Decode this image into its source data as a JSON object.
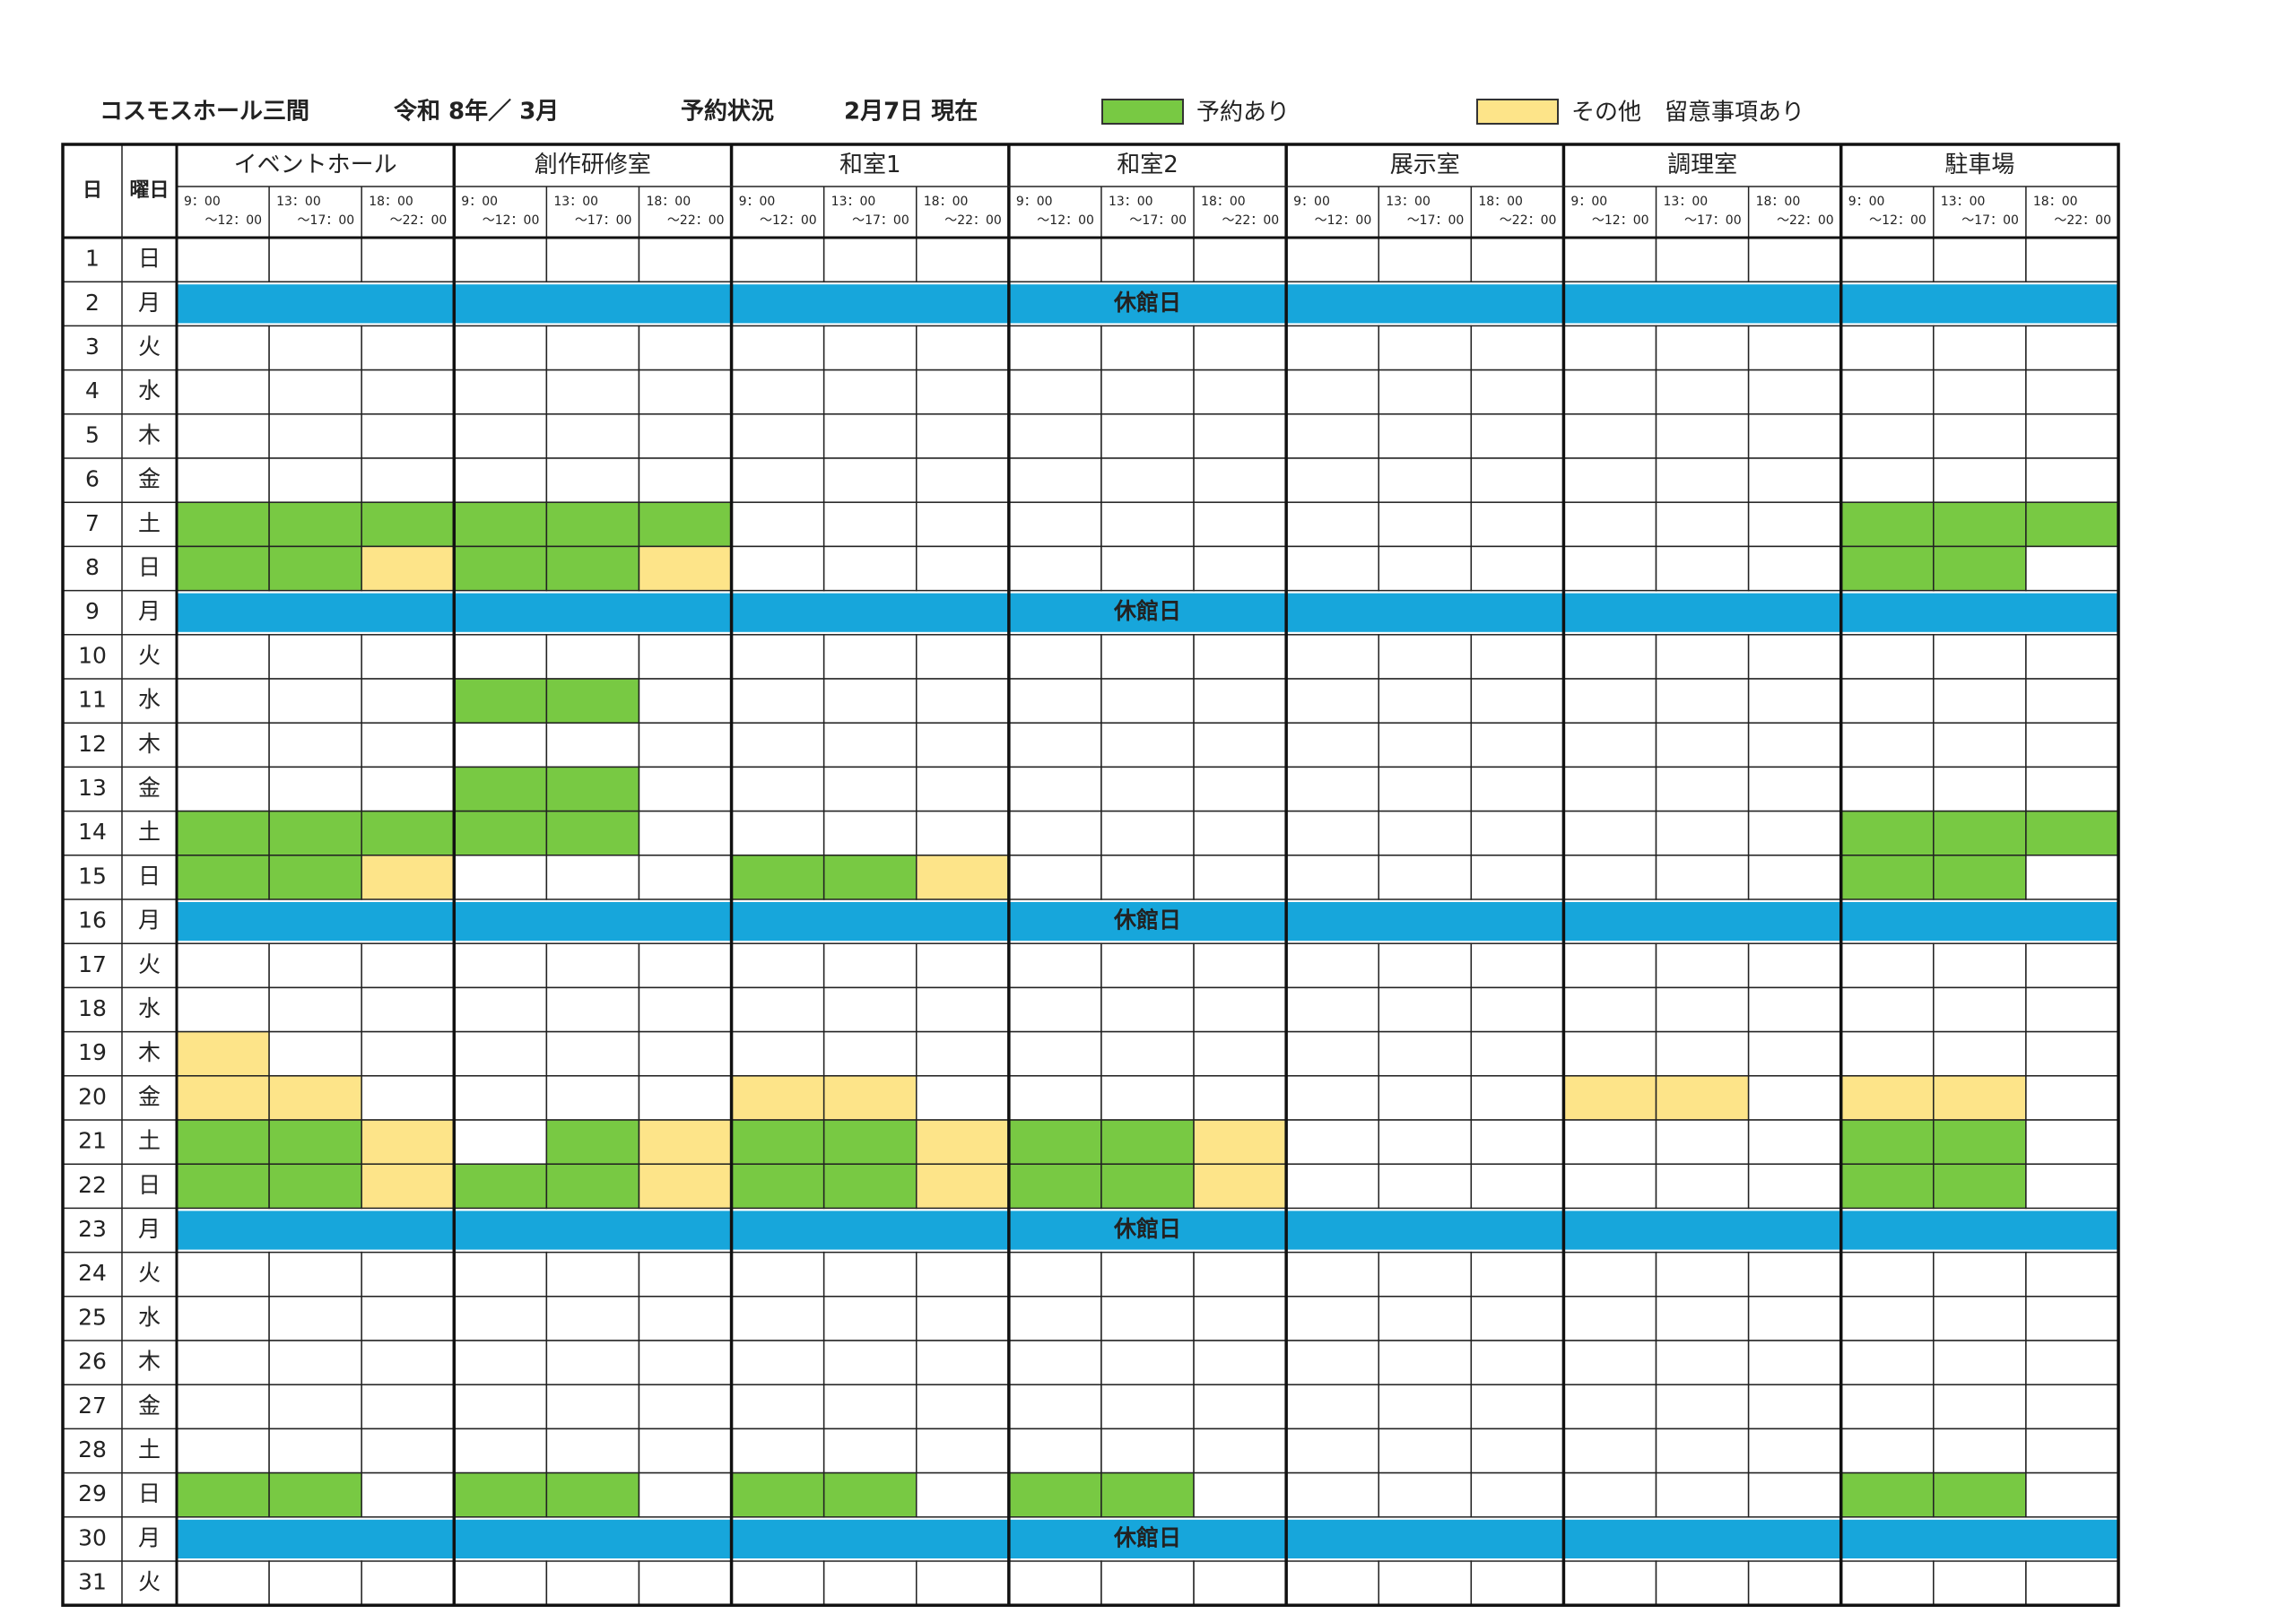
{
  "header": {
    "title": "コスモスホール三間",
    "period": "令和 8年／ 3月",
    "label": "予約状況",
    "as_of": "2月7日 現在"
  },
  "legend": [
    {
      "label": "予約あり",
      "color": "#78c943"
    },
    {
      "label": "その他　留意事項あり",
      "color": "#fde489"
    }
  ],
  "table": {
    "headers": [
      "日",
      "曜日"
    ],
    "rooms": [
      "イベントホール",
      "創作研修室",
      "和室1",
      "和室2",
      "展示室",
      "調理室",
      "駐車場"
    ],
    "slots": [
      [
        "9：00",
        "～12：00"
      ],
      [
        "13：00",
        "～17：00"
      ],
      [
        "18：00",
        "～22：00"
      ]
    ],
    "closed_label": "休館日",
    "closed_color": "#17a6db",
    "days": [
      {
        "day": 1,
        "weekday": "日",
        "color": "#d9542c",
        "cells": [
          null,
          null,
          null,
          null,
          null,
          null,
          null,
          null,
          null,
          null,
          null,
          null,
          null,
          null,
          null,
          null,
          null,
          null,
          null,
          null,
          null
        ]
      },
      {
        "day": 2,
        "weekday": "月",
        "closed": true
      },
      {
        "day": 3,
        "weekday": "火",
        "cells": [
          null,
          null,
          null,
          null,
          null,
          null,
          null,
          null,
          null,
          null,
          null,
          null,
          null,
          null,
          null,
          null,
          null,
          null,
          null,
          null,
          null
        ]
      },
      {
        "day": 4,
        "weekday": "水",
        "cells": [
          null,
          null,
          null,
          null,
          null,
          null,
          null,
          null,
          null,
          null,
          null,
          null,
          null,
          null,
          null,
          null,
          null,
          null,
          null,
          null,
          null
        ]
      },
      {
        "day": 5,
        "weekday": "木",
        "cells": [
          null,
          null,
          null,
          null,
          null,
          null,
          null,
          null,
          null,
          null,
          null,
          null,
          null,
          null,
          null,
          null,
          null,
          null,
          null,
          null,
          null
        ]
      },
      {
        "day": 6,
        "weekday": "金",
        "cells": [
          null,
          null,
          null,
          null,
          null,
          null,
          null,
          null,
          null,
          null,
          null,
          null,
          null,
          null,
          null,
          null,
          null,
          null,
          null,
          null,
          null
        ]
      },
      {
        "day": 7,
        "weekday": "土",
        "color": "#3aa0c8",
        "cells": [
          0,
          0,
          0,
          0,
          0,
          0,
          null,
          null,
          null,
          null,
          null,
          null,
          null,
          null,
          null,
          null,
          null,
          null,
          0,
          0,
          0
        ]
      },
      {
        "day": 8,
        "weekday": "日",
        "color": "#d9542c",
        "cells": [
          0,
          0,
          1,
          0,
          0,
          1,
          null,
          null,
          null,
          null,
          null,
          null,
          null,
          null,
          null,
          null,
          null,
          null,
          0,
          0,
          null
        ]
      },
      {
        "day": 9,
        "weekday": "月",
        "closed": true
      },
      {
        "day": 10,
        "weekday": "火",
        "cells": [
          null,
          null,
          null,
          null,
          null,
          null,
          null,
          null,
          null,
          null,
          null,
          null,
          null,
          null,
          null,
          null,
          null,
          null,
          null,
          null,
          null
        ]
      },
      {
        "day": 11,
        "weekday": "水",
        "cells": [
          null,
          null,
          null,
          0,
          0,
          null,
          null,
          null,
          null,
          null,
          null,
          null,
          null,
          null,
          null,
          null,
          null,
          null,
          null,
          null,
          null
        ]
      },
      {
        "day": 12,
        "weekday": "木",
        "cells": [
          null,
          null,
          null,
          null,
          null,
          null,
          null,
          null,
          null,
          null,
          null,
          null,
          null,
          null,
          null,
          null,
          null,
          null,
          null,
          null,
          null
        ]
      },
      {
        "day": 13,
        "weekday": "金",
        "cells": [
          null,
          null,
          null,
          0,
          0,
          null,
          null,
          null,
          null,
          null,
          null,
          null,
          null,
          null,
          null,
          null,
          null,
          null,
          null,
          null,
          null
        ]
      },
      {
        "day": 14,
        "weekday": "土",
        "color": "#3aa0c8",
        "cells": [
          0,
          0,
          0,
          0,
          0,
          null,
          null,
          null,
          null,
          null,
          null,
          null,
          null,
          null,
          null,
          null,
          null,
          null,
          0,
          0,
          0
        ]
      },
      {
        "day": 15,
        "weekday": "日",
        "color": "#d9542c",
        "cells": [
          0,
          0,
          1,
          null,
          null,
          null,
          0,
          0,
          1,
          null,
          null,
          null,
          null,
          null,
          null,
          null,
          null,
          null,
          0,
          0,
          null
        ]
      },
      {
        "day": 16,
        "weekday": "月",
        "closed": true
      },
      {
        "day": 17,
        "weekday": "火",
        "cells": [
          null,
          null,
          null,
          null,
          null,
          null,
          null,
          null,
          null,
          null,
          null,
          null,
          null,
          null,
          null,
          null,
          null,
          null,
          null,
          null,
          null
        ]
      },
      {
        "day": 18,
        "weekday": "水",
        "cells": [
          null,
          null,
          null,
          null,
          null,
          null,
          null,
          null,
          null,
          null,
          null,
          null,
          null,
          null,
          null,
          null,
          null,
          null,
          null,
          null,
          null
        ]
      },
      {
        "day": 19,
        "weekday": "木",
        "cells": [
          1,
          null,
          null,
          null,
          null,
          null,
          null,
          null,
          null,
          null,
          null,
          null,
          null,
          null,
          null,
          null,
          null,
          null,
          null,
          null,
          null
        ]
      },
      {
        "day": 20,
        "weekday": "金",
        "color": "#d9542c",
        "cells": [
          1,
          1,
          null,
          null,
          null,
          null,
          1,
          1,
          null,
          null,
          null,
          null,
          null,
          null,
          null,
          1,
          1,
          null,
          1,
          1,
          null
        ]
      },
      {
        "day": 21,
        "weekday": "土",
        "color": "#3aa0c8",
        "cells": [
          0,
          0,
          1,
          null,
          0,
          1,
          0,
          0,
          1,
          0,
          0,
          1,
          null,
          null,
          null,
          null,
          null,
          null,
          0,
          0,
          null
        ]
      },
      {
        "day": 22,
        "weekday": "日",
        "color": "#d9542c",
        "cells": [
          0,
          0,
          1,
          0,
          0,
          1,
          0,
          0,
          1,
          0,
          0,
          1,
          null,
          null,
          null,
          null,
          null,
          null,
          0,
          0,
          null
        ]
      },
      {
        "day": 23,
        "weekday": "月",
        "closed": true
      },
      {
        "day": 24,
        "weekday": "火",
        "cells": [
          null,
          null,
          null,
          null,
          null,
          null,
          null,
          null,
          null,
          null,
          null,
          null,
          null,
          null,
          null,
          null,
          null,
          null,
          null,
          null,
          null
        ]
      },
      {
        "day": 25,
        "weekday": "水",
        "cells": [
          null,
          null,
          null,
          null,
          null,
          null,
          null,
          null,
          null,
          null,
          null,
          null,
          null,
          null,
          null,
          null,
          null,
          null,
          null,
          null,
          null
        ]
      },
      {
        "day": 26,
        "weekday": "木",
        "cells": [
          null,
          null,
          null,
          null,
          null,
          null,
          null,
          null,
          null,
          null,
          null,
          null,
          null,
          null,
          null,
          null,
          null,
          null,
          null,
          null,
          null
        ]
      },
      {
        "day": 27,
        "weekday": "金",
        "cells": [
          null,
          null,
          null,
          null,
          null,
          null,
          null,
          null,
          null,
          null,
          null,
          null,
          null,
          null,
          null,
          null,
          null,
          null,
          null,
          null,
          null
        ]
      },
      {
        "day": 28,
        "weekday": "土",
        "color": "#3aa0c8",
        "cells": [
          null,
          null,
          null,
          null,
          null,
          null,
          null,
          null,
          null,
          null,
          null,
          null,
          null,
          null,
          null,
          null,
          null,
          null,
          null,
          null,
          null
        ]
      },
      {
        "day": 29,
        "weekday": "日",
        "color": "#d9542c",
        "cells": [
          0,
          0,
          null,
          0,
          0,
          null,
          0,
          0,
          null,
          0,
          0,
          null,
          null,
          null,
          null,
          null,
          null,
          null,
          0,
          0,
          null
        ]
      },
      {
        "day": 30,
        "weekday": "月",
        "closed": true
      },
      {
        "day": 31,
        "weekday": "火",
        "cells": [
          null,
          null,
          null,
          null,
          null,
          null,
          null,
          null,
          null,
          null,
          null,
          null,
          null,
          null,
          null,
          null,
          null,
          null,
          null,
          null,
          null
        ]
      }
    ]
  }
}
